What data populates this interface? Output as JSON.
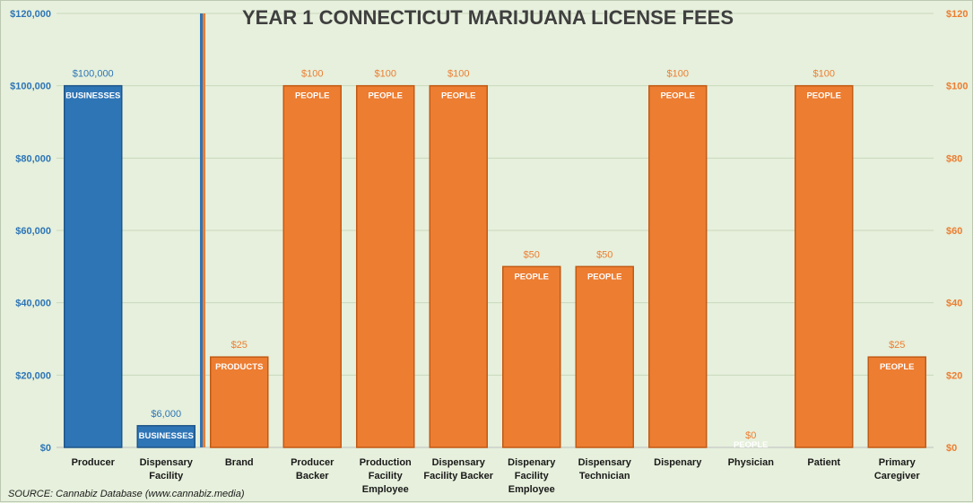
{
  "chart_data": {
    "type": "bar",
    "title": "YEAR 1 CONNECTICUT MARIJUANA LICENSE FEES",
    "source": "SOURCE:  Cannabiz Database (www.cannabiz.media)",
    "categories": [
      [
        "Producer"
      ],
      [
        "Dispensary",
        "Facility"
      ],
      [
        "Brand"
      ],
      [
        "Producer",
        "Backer"
      ],
      [
        "Production",
        "Facility",
        "Employee"
      ],
      [
        "Dispensary",
        "Facility Backer"
      ],
      [
        "Dispenary",
        "Facility",
        "Employee"
      ],
      [
        "Dispensary",
        "Technician"
      ],
      [
        "Dispenary"
      ],
      [
        "Physician"
      ],
      [
        "Patient"
      ],
      [
        "Primary",
        "Caregiver"
      ]
    ],
    "series": [
      {
        "axis": "left",
        "color": "#2e75b6",
        "points": [
          {
            "category_index": 0,
            "value": 100000,
            "label": "$100,000",
            "unit": "BUSINESSES"
          },
          {
            "category_index": 1,
            "value": 6000,
            "label": "$6,000",
            "unit": "BUSINESSES"
          }
        ]
      },
      {
        "axis": "right",
        "color": "#ed7d31",
        "points": [
          {
            "category_index": 2,
            "value": 25,
            "label": "$25",
            "unit": "PRODUCTS"
          },
          {
            "category_index": 3,
            "value": 100,
            "label": "$100",
            "unit": "PEOPLE"
          },
          {
            "category_index": 4,
            "value": 100,
            "label": "$100",
            "unit": "PEOPLE"
          },
          {
            "category_index": 5,
            "value": 100,
            "label": "$100",
            "unit": "PEOPLE"
          },
          {
            "category_index": 6,
            "value": 50,
            "label": "$50",
            "unit": "PEOPLE"
          },
          {
            "category_index": 7,
            "value": 50,
            "label": "$50",
            "unit": "PEOPLE"
          },
          {
            "category_index": 8,
            "value": 100,
            "label": "$100",
            "unit": "PEOPLE"
          },
          {
            "category_index": 9,
            "value": 0,
            "label": "$0",
            "unit": "PEOPLE"
          },
          {
            "category_index": 10,
            "value": 100,
            "label": "$100",
            "unit": "PEOPLE"
          },
          {
            "category_index": 11,
            "value": 25,
            "label": "$25",
            "unit": "PEOPLE"
          }
        ]
      }
    ],
    "y_left": {
      "min": 0,
      "max": 120000,
      "ticks": [
        "$0",
        "$20,000",
        "$40,000",
        "$60,000",
        "$80,000",
        "$100,000",
        "$120,000"
      ],
      "color": "#2e75b6"
    },
    "y_right": {
      "min": 0,
      "max": 120,
      "ticks": [
        "$0",
        "$20",
        "$40",
        "$60",
        "$80",
        "$100",
        "$120"
      ],
      "color": "#ed7d31"
    },
    "grid": true,
    "divider_after_category": 1,
    "colors": {
      "background": "#e6f0dc",
      "blue": "#2e75b6",
      "orange": "#ed7d31",
      "grid": "#c9d8bd"
    }
  }
}
